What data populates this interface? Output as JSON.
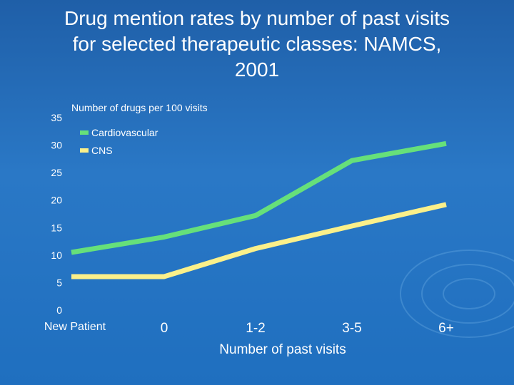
{
  "chart_data": {
    "type": "line",
    "title": "Drug mention rates by number of past visits\nfor selected therapeutic classes: NAMCS,\n2001",
    "ylabel": "Number of drugs per 100 visits",
    "xlabel": "Number of past visits",
    "categories": [
      "New Patient",
      "0",
      "1-2",
      "3-5",
      "6+"
    ],
    "ylim": [
      0,
      35
    ],
    "yticks": [
      0,
      5,
      10,
      15,
      20,
      25,
      30,
      35
    ],
    "series": [
      {
        "name": "Cardiovascular",
        "color": "#66e07a",
        "values": [
          10.5,
          13.3,
          17.2,
          27.2,
          30.3
        ]
      },
      {
        "name": "CNS",
        "color": "#fbf08a",
        "values": [
          6.1,
          6.1,
          11.2,
          15.3,
          19.2
        ]
      }
    ],
    "legend": "top-left"
  }
}
